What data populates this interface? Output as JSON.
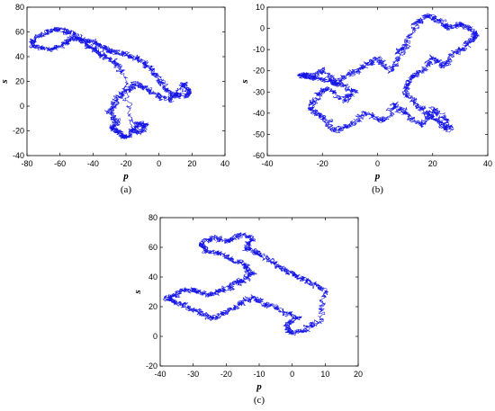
{
  "chart_data": [
    {
      "type": "line",
      "caption": "(a)",
      "xlabel": "p",
      "ylabel": "s",
      "xlim": [
        -80,
        40
      ],
      "ylim": [
        -40,
        80
      ],
      "xticks": [
        -80,
        -60,
        -40,
        -20,
        0,
        20,
        40
      ],
      "yticks": [
        -40,
        -20,
        0,
        20,
        40,
        60,
        80
      ],
      "grid": false,
      "color": "#1414e6",
      "series": [
        {
          "x": [
            -78,
            -70,
            -62,
            -55,
            -48,
            -40,
            -34,
            -28,
            -20,
            -12,
            -5,
            0,
            5,
            12,
            18,
            15,
            8,
            0,
            -8,
            -14,
            -20,
            -25,
            -30,
            -26,
            -28,
            -24,
            -20,
            -16,
            -12,
            -8,
            -14,
            -22,
            -28,
            -35,
            -40,
            -46,
            -52,
            -58,
            -66,
            -74,
            -78
          ],
          "y": [
            52,
            58,
            63,
            60,
            55,
            52,
            48,
            44,
            42,
            38,
            30,
            22,
            12,
            8,
            10,
            18,
            5,
            8,
            14,
            18,
            12,
            6,
            -4,
            -12,
            -18,
            -22,
            -26,
            -20,
            -14,
            -16,
            -22,
            28,
            36,
            42,
            46,
            52,
            56,
            50,
            46,
            48,
            52
          ]
        }
      ]
    },
    {
      "type": "line",
      "caption": "(b)",
      "xlabel": "p",
      "ylabel": "s",
      "xlim": [
        -40,
        40
      ],
      "ylim": [
        -60,
        10
      ],
      "xticks": [
        -40,
        -20,
        0,
        20,
        40
      ],
      "yticks": [
        -60,
        -50,
        -40,
        -30,
        -20,
        -10,
        0,
        10
      ],
      "grid": false,
      "color": "#1414e6",
      "series": [
        {
          "x": [
            -28,
            -24,
            -20,
            -15,
            -10,
            -5,
            0,
            5,
            8,
            10,
            14,
            18,
            22,
            26,
            30,
            34,
            36,
            32,
            28,
            24,
            20,
            16,
            12,
            10,
            14,
            18,
            22,
            26,
            24,
            20,
            16,
            10,
            6,
            2,
            -4,
            -10,
            -16,
            -20,
            -24,
            -22,
            -18,
            -12,
            -8,
            -14,
            -20,
            -26,
            -28
          ],
          "y": [
            -22,
            -24,
            -20,
            -26,
            -22,
            -18,
            -14,
            -20,
            -12,
            -8,
            2,
            6,
            4,
            0,
            2,
            0,
            -4,
            -8,
            -12,
            -18,
            -14,
            -20,
            -24,
            -30,
            -36,
            -40,
            -44,
            -48,
            -42,
            -38,
            -46,
            -40,
            -36,
            -44,
            -40,
            -46,
            -48,
            -42,
            -38,
            -32,
            -28,
            -34,
            -30,
            -26,
            -24,
            -22,
            -22
          ]
        }
      ]
    },
    {
      "type": "line",
      "caption": "(c)",
      "xlabel": "p",
      "ylabel": "s",
      "xlim": [
        -40,
        20
      ],
      "ylim": [
        -20,
        80
      ],
      "xticks": [
        -40,
        -30,
        -20,
        -10,
        0,
        10,
        20
      ],
      "yticks": [
        -20,
        0,
        20,
        40,
        60,
        80
      ],
      "grid": false,
      "color": "#1414e6",
      "series": [
        {
          "x": [
            -38,
            -34,
            -30,
            -26,
            -22,
            -18,
            -15,
            -12,
            -14,
            -18,
            -22,
            -26,
            -28,
            -24,
            -20,
            -16,
            -12,
            -14,
            -10,
            -6,
            -2,
            2,
            6,
            10,
            8,
            4,
            0,
            -2,
            2,
            -4,
            -8,
            -12,
            -16,
            -20,
            -24,
            -28,
            -32,
            -36,
            -38
          ],
          "y": [
            26,
            30,
            32,
            28,
            30,
            34,
            38,
            42,
            48,
            52,
            56,
            58,
            62,
            66,
            64,
            68,
            66,
            60,
            56,
            50,
            44,
            40,
            36,
            30,
            10,
            4,
            2,
            8,
            12,
            18,
            22,
            26,
            22,
            16,
            12,
            16,
            20,
            24,
            26
          ]
        }
      ]
    }
  ]
}
